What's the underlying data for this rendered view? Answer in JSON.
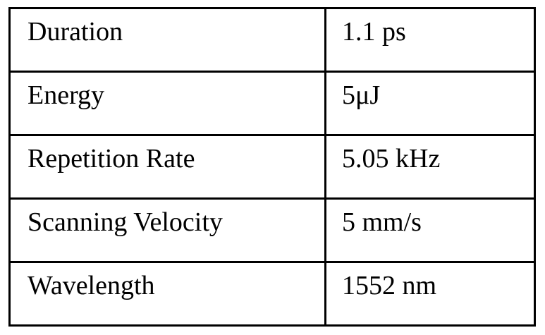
{
  "table": {
    "rows": [
      {
        "parameter": "Duration",
        "value": "1.1 ps"
      },
      {
        "parameter": "Energy",
        "value": "5μJ"
      },
      {
        "parameter": "Repetition Rate",
        "value": "5.05 kHz"
      },
      {
        "parameter": "Scanning Velocity",
        "value": "5 mm/s"
      },
      {
        "parameter": "Wavelength",
        "value": "1552 nm"
      }
    ]
  }
}
